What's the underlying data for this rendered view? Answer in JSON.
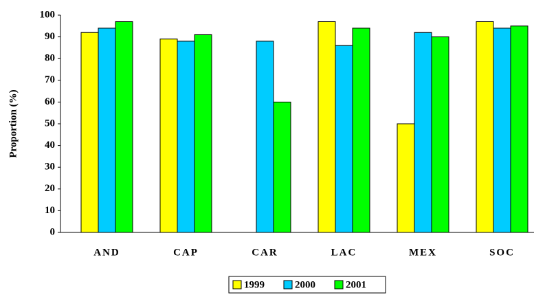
{
  "chart_data": {
    "type": "bar",
    "y_label": "Proportion (%)",
    "categories": [
      "AND",
      "CAP",
      "CAR",
      "LAC",
      "MEX",
      "SOC"
    ],
    "series": [
      {
        "name": "1999",
        "color": "#ffff00",
        "values": [
          92,
          89,
          null,
          97,
          50,
          97
        ]
      },
      {
        "name": "2000",
        "color": "#00ccff",
        "values": [
          94,
          88,
          88,
          86,
          92,
          94
        ]
      },
      {
        "name": "2001",
        "color": "#00ff00",
        "values": [
          97,
          91,
          60,
          94,
          90,
          95
        ]
      }
    ],
    "ylim": [
      0,
      100
    ],
    "yticks": [
      0,
      10,
      20,
      30,
      40,
      50,
      60,
      70,
      80,
      90,
      100
    ],
    "legend": "bottom"
  }
}
